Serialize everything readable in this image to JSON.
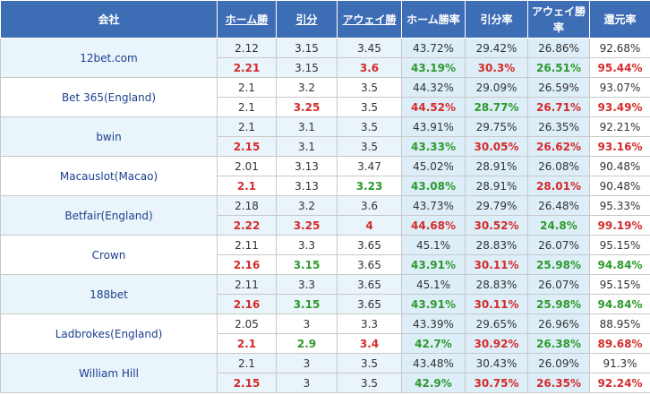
{
  "headers": {
    "company": "会社",
    "home": "ホーム勝",
    "draw": "引分",
    "away": "アウェイ勝",
    "home_rate": "ホーム勝率",
    "draw_rate": "引分率",
    "away_rate_line1": "アウェイ勝",
    "away_rate_line2": "率",
    "return_rate": "還元率"
  },
  "colors": {
    "header_bg": "#3d6db5",
    "alt_row": "#eaf4fb",
    "up": "#d42b2b",
    "down": "#2d9a2d"
  },
  "bookmakers": [
    {
      "name": "12bet.com",
      "alt": true,
      "open": [
        "2.12",
        "3.15",
        "3.45",
        "43.72%",
        "29.42%",
        "26.86%",
        "92.68%"
      ],
      "now": [
        "2.21",
        "3.15",
        "3.6",
        "43.19%",
        "30.3%",
        "26.51%",
        "95.44%"
      ],
      "now_colors": [
        "red",
        "",
        "red",
        "green",
        "red",
        "green",
        "red"
      ]
    },
    {
      "name": "Bet 365(England)",
      "alt": false,
      "open": [
        "2.1",
        "3.2",
        "3.5",
        "44.32%",
        "29.09%",
        "26.59%",
        "93.07%"
      ],
      "now": [
        "2.1",
        "3.25",
        "3.5",
        "44.52%",
        "28.77%",
        "26.71%",
        "93.49%"
      ],
      "now_colors": [
        "",
        "red",
        "",
        "red",
        "green",
        "red",
        "red"
      ]
    },
    {
      "name": "bwin",
      "alt": true,
      "open": [
        "2.1",
        "3.1",
        "3.5",
        "43.91%",
        "29.75%",
        "26.35%",
        "92.21%"
      ],
      "now": [
        "2.15",
        "3.1",
        "3.5",
        "43.33%",
        "30.05%",
        "26.62%",
        "93.16%"
      ],
      "now_colors": [
        "red",
        "",
        "",
        "green",
        "red",
        "red",
        "red"
      ]
    },
    {
      "name": "Macauslot(Macao)",
      "alt": false,
      "open": [
        "2.01",
        "3.13",
        "3.47",
        "45.02%",
        "28.91%",
        "26.08%",
        "90.48%"
      ],
      "now": [
        "2.1",
        "3.13",
        "3.23",
        "43.08%",
        "28.91%",
        "28.01%",
        "90.48%"
      ],
      "now_colors": [
        "red",
        "",
        "green",
        "green",
        "",
        "red",
        ""
      ]
    },
    {
      "name": "Betfair(England)",
      "alt": true,
      "open": [
        "2.18",
        "3.2",
        "3.6",
        "43.73%",
        "29.79%",
        "26.48%",
        "95.33%"
      ],
      "now": [
        "2.22",
        "3.25",
        "4",
        "44.68%",
        "30.52%",
        "24.8%",
        "99.19%"
      ],
      "now_colors": [
        "red",
        "red",
        "red",
        "red",
        "red",
        "green",
        "red"
      ]
    },
    {
      "name": "Crown",
      "alt": false,
      "open": [
        "2.11",
        "3.3",
        "3.65",
        "45.1%",
        "28.83%",
        "26.07%",
        "95.15%"
      ],
      "now": [
        "2.16",
        "3.15",
        "3.65",
        "43.91%",
        "30.11%",
        "25.98%",
        "94.84%"
      ],
      "now_colors": [
        "red",
        "green",
        "",
        "green",
        "red",
        "green",
        "green"
      ]
    },
    {
      "name": "188bet",
      "alt": true,
      "open": [
        "2.11",
        "3.3",
        "3.65",
        "45.1%",
        "28.83%",
        "26.07%",
        "95.15%"
      ],
      "now": [
        "2.16",
        "3.15",
        "3.65",
        "43.91%",
        "30.11%",
        "25.98%",
        "94.84%"
      ],
      "now_colors": [
        "red",
        "green",
        "",
        "green",
        "red",
        "green",
        "green"
      ]
    },
    {
      "name": "Ladbrokes(England)",
      "alt": false,
      "open": [
        "2.05",
        "3",
        "3.3",
        "43.39%",
        "29.65%",
        "26.96%",
        "88.95%"
      ],
      "now": [
        "2.1",
        "2.9",
        "3.4",
        "42.7%",
        "30.92%",
        "26.38%",
        "89.68%"
      ],
      "now_colors": [
        "red",
        "green",
        "red",
        "green",
        "red",
        "green",
        "red"
      ]
    },
    {
      "name": "William Hill",
      "alt": true,
      "open": [
        "2.1",
        "3",
        "3.5",
        "43.48%",
        "30.43%",
        "26.09%",
        "91.3%"
      ],
      "now": [
        "2.15",
        "3",
        "3.5",
        "42.9%",
        "30.75%",
        "26.35%",
        "92.24%"
      ],
      "now_colors": [
        "red",
        "",
        "",
        "green",
        "red",
        "red",
        "red"
      ]
    }
  ]
}
